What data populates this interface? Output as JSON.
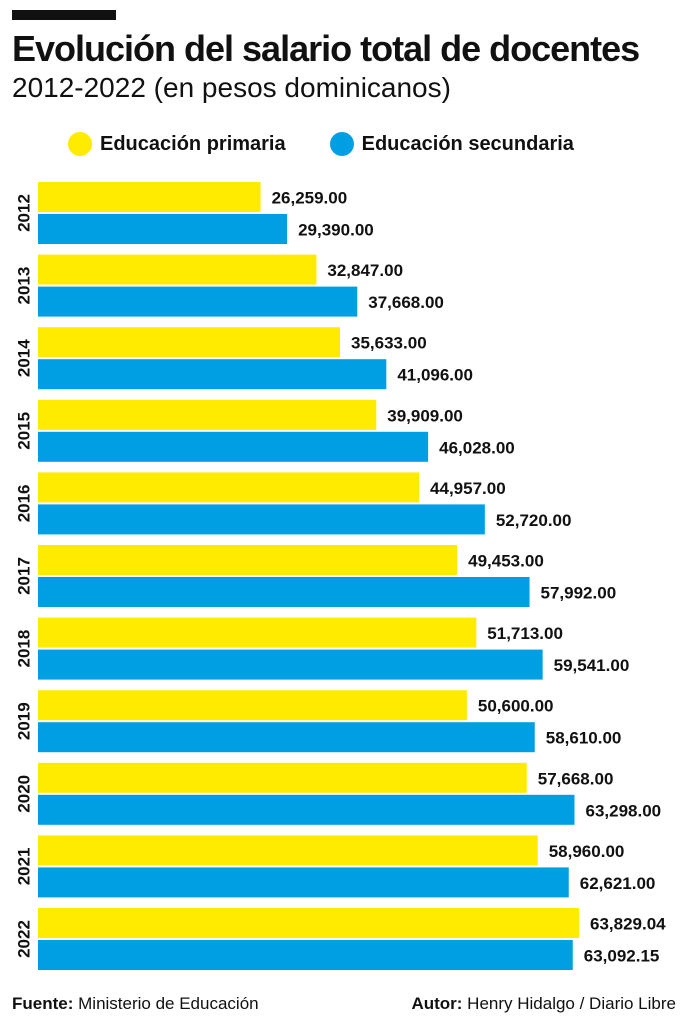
{
  "header": {
    "title": "Evolución del salario total de docentes",
    "subtitle": "2012-2022 (en pesos dominicanos)"
  },
  "legend": [
    {
      "label": "Educación primaria",
      "color": "#FFEB00"
    },
    {
      "label": "Educación secundaria",
      "color": "#009FE3"
    }
  ],
  "footer": {
    "source_label": "Fuente:",
    "source_value": "Ministerio de Educación",
    "author_label": "Autor:",
    "author_value": "Henry Hidalgo / Diario Libre"
  },
  "chart_data": {
    "type": "bar",
    "orientation": "horizontal",
    "title": "Evolución del salario total de docentes",
    "subtitle": "2012-2022 (en pesos dominicanos)",
    "categories": [
      "2012",
      "2013",
      "2014",
      "2015",
      "2016",
      "2017",
      "2018",
      "2019",
      "2020",
      "2021",
      "2022"
    ],
    "series": [
      {
        "name": "Educación primaria",
        "color": "#FFEB00",
        "values": [
          26259.0,
          32847.0,
          35633.0,
          39909.0,
          44957.0,
          49453.0,
          51713.0,
          50600.0,
          57668.0,
          58960.0,
          63829.04
        ],
        "labels": [
          "26,259.00",
          "32,847.00",
          "35,633.00",
          "39,909.00",
          "44,957.00",
          "49,453.00",
          "51,713.00",
          "50,600.00",
          "57,668.00",
          "58,960.00",
          "63,829.04"
        ]
      },
      {
        "name": "Educación secundaria",
        "color": "#009FE3",
        "values": [
          29390.0,
          37668.0,
          41096.0,
          46028.0,
          52720.0,
          57992.0,
          59541.0,
          58610.0,
          63298.0,
          62621.0,
          63092.15
        ],
        "labels": [
          "29,390.00",
          "37,668.00",
          "41,096.00",
          "46,028.00",
          "52,720.00",
          "57,992.00",
          "59,541.00",
          "58,610.00",
          "63,298.00",
          "62,621.00",
          "63,092.15"
        ]
      }
    ],
    "grid": false,
    "legend_position": "top"
  }
}
